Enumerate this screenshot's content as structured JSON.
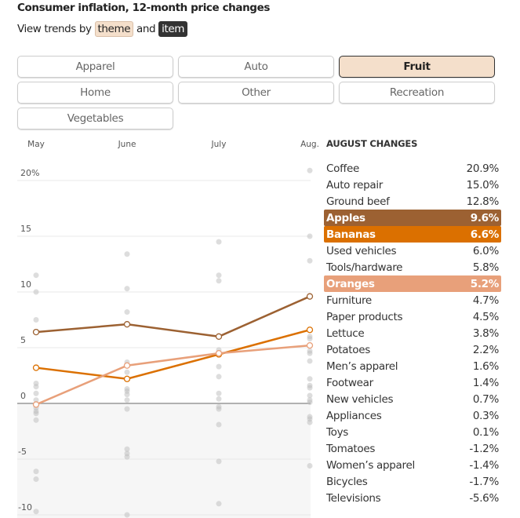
{
  "header": {
    "title": "Consumer inflation, 12-month price changes",
    "subtitle_prefix": "View trends by",
    "theme_chip": "theme",
    "and": "and",
    "item_chip": "item"
  },
  "themes": [
    {
      "label": "Apparel",
      "active": false
    },
    {
      "label": "Auto",
      "active": false
    },
    {
      "label": "Fruit",
      "active": true
    },
    {
      "label": "Home",
      "active": false
    },
    {
      "label": "Other",
      "active": false
    },
    {
      "label": "Recreation",
      "active": false
    },
    {
      "label": "Vegetables",
      "active": false
    }
  ],
  "chart_data": {
    "type": "line",
    "title": "Consumer inflation, 12-month price changes",
    "x": [
      "May",
      "June",
      "July",
      "Aug."
    ],
    "yticks": [
      {
        "v": 20,
        "label": "20%"
      },
      {
        "v": 15,
        "label": "15"
      },
      {
        "v": 10,
        "label": "10"
      },
      {
        "v": 5,
        "label": "5"
      },
      {
        "v": 0,
        "label": "0"
      },
      {
        "v": -5,
        "label": "-5"
      },
      {
        "v": -10,
        "label": "-10"
      }
    ],
    "ylim": [
      -10.5,
      21.5
    ],
    "series": [
      {
        "name": "Apples",
        "color": "#9c6132",
        "values": [
          6.4,
          7.1,
          6.0,
          9.6
        ]
      },
      {
        "name": "Bananas",
        "color": "#db7000",
        "values": [
          3.2,
          2.2,
          4.4,
          6.6
        ]
      },
      {
        "name": "Oranges",
        "color": "#e8a07a",
        "values": [
          -0.1,
          3.4,
          4.5,
          5.2
        ]
      }
    ],
    "background_points": [
      [
        11.5,
        10,
        7.5,
        1.8,
        1.5,
        0.9,
        0.3,
        -0.4,
        -0.7,
        -0.9,
        -1.5,
        -6.1,
        -6.8,
        -9.7
      ],
      [
        13.4,
        10.3,
        8.2,
        3.7,
        2.8,
        1.3,
        1.1,
        0.8,
        0.3,
        -0.5,
        -4.1,
        -4.5,
        -4.8,
        -10
      ],
      [
        14.5,
        11.5,
        11,
        4.8,
        3.3,
        2.4,
        0.9,
        0.4,
        -0.3,
        -0.5,
        -1.9,
        -5.2,
        -9
      ],
      [
        20.9,
        15.0,
        12.8,
        6.0,
        5.8,
        4.7,
        4.5,
        3.8,
        2.2,
        1.6,
        1.4,
        0.7,
        0.3,
        0.1,
        -1.2,
        -1.4,
        -1.7,
        -5.6
      ]
    ]
  },
  "table": {
    "heading": "AUGUST CHANGES",
    "rows": [
      {
        "name": "Coffee",
        "value": "20.9%"
      },
      {
        "name": "Auto repair",
        "value": "15.0%"
      },
      {
        "name": "Ground beef",
        "value": "12.8%"
      },
      {
        "name": "Apples",
        "value": "9.6%",
        "color": "#9c6132"
      },
      {
        "name": "Bananas",
        "value": "6.6%",
        "color": "#db7000"
      },
      {
        "name": "Used vehicles",
        "value": "6.0%"
      },
      {
        "name": "Tools/hardware",
        "value": "5.8%"
      },
      {
        "name": "Oranges",
        "value": "5.2%",
        "color": "#e8a07a"
      },
      {
        "name": "Furniture",
        "value": "4.7%"
      },
      {
        "name": "Paper products",
        "value": "4.5%"
      },
      {
        "name": "Lettuce",
        "value": "3.8%"
      },
      {
        "name": "Potatoes",
        "value": "2.2%"
      },
      {
        "name": "Men’s apparel",
        "value": "1.6%"
      },
      {
        "name": "Footwear",
        "value": "1.4%"
      },
      {
        "name": "New vehicles",
        "value": "0.7%"
      },
      {
        "name": "Appliances",
        "value": "0.3%"
      },
      {
        "name": "Toys",
        "value": "0.1%"
      },
      {
        "name": "Tomatoes",
        "value": "-1.2%"
      },
      {
        "name": "Women’s apparel",
        "value": "-1.4%"
      },
      {
        "name": "Bicycles",
        "value": "-1.7%"
      },
      {
        "name": "Televisions",
        "value": "-5.6%"
      }
    ]
  }
}
